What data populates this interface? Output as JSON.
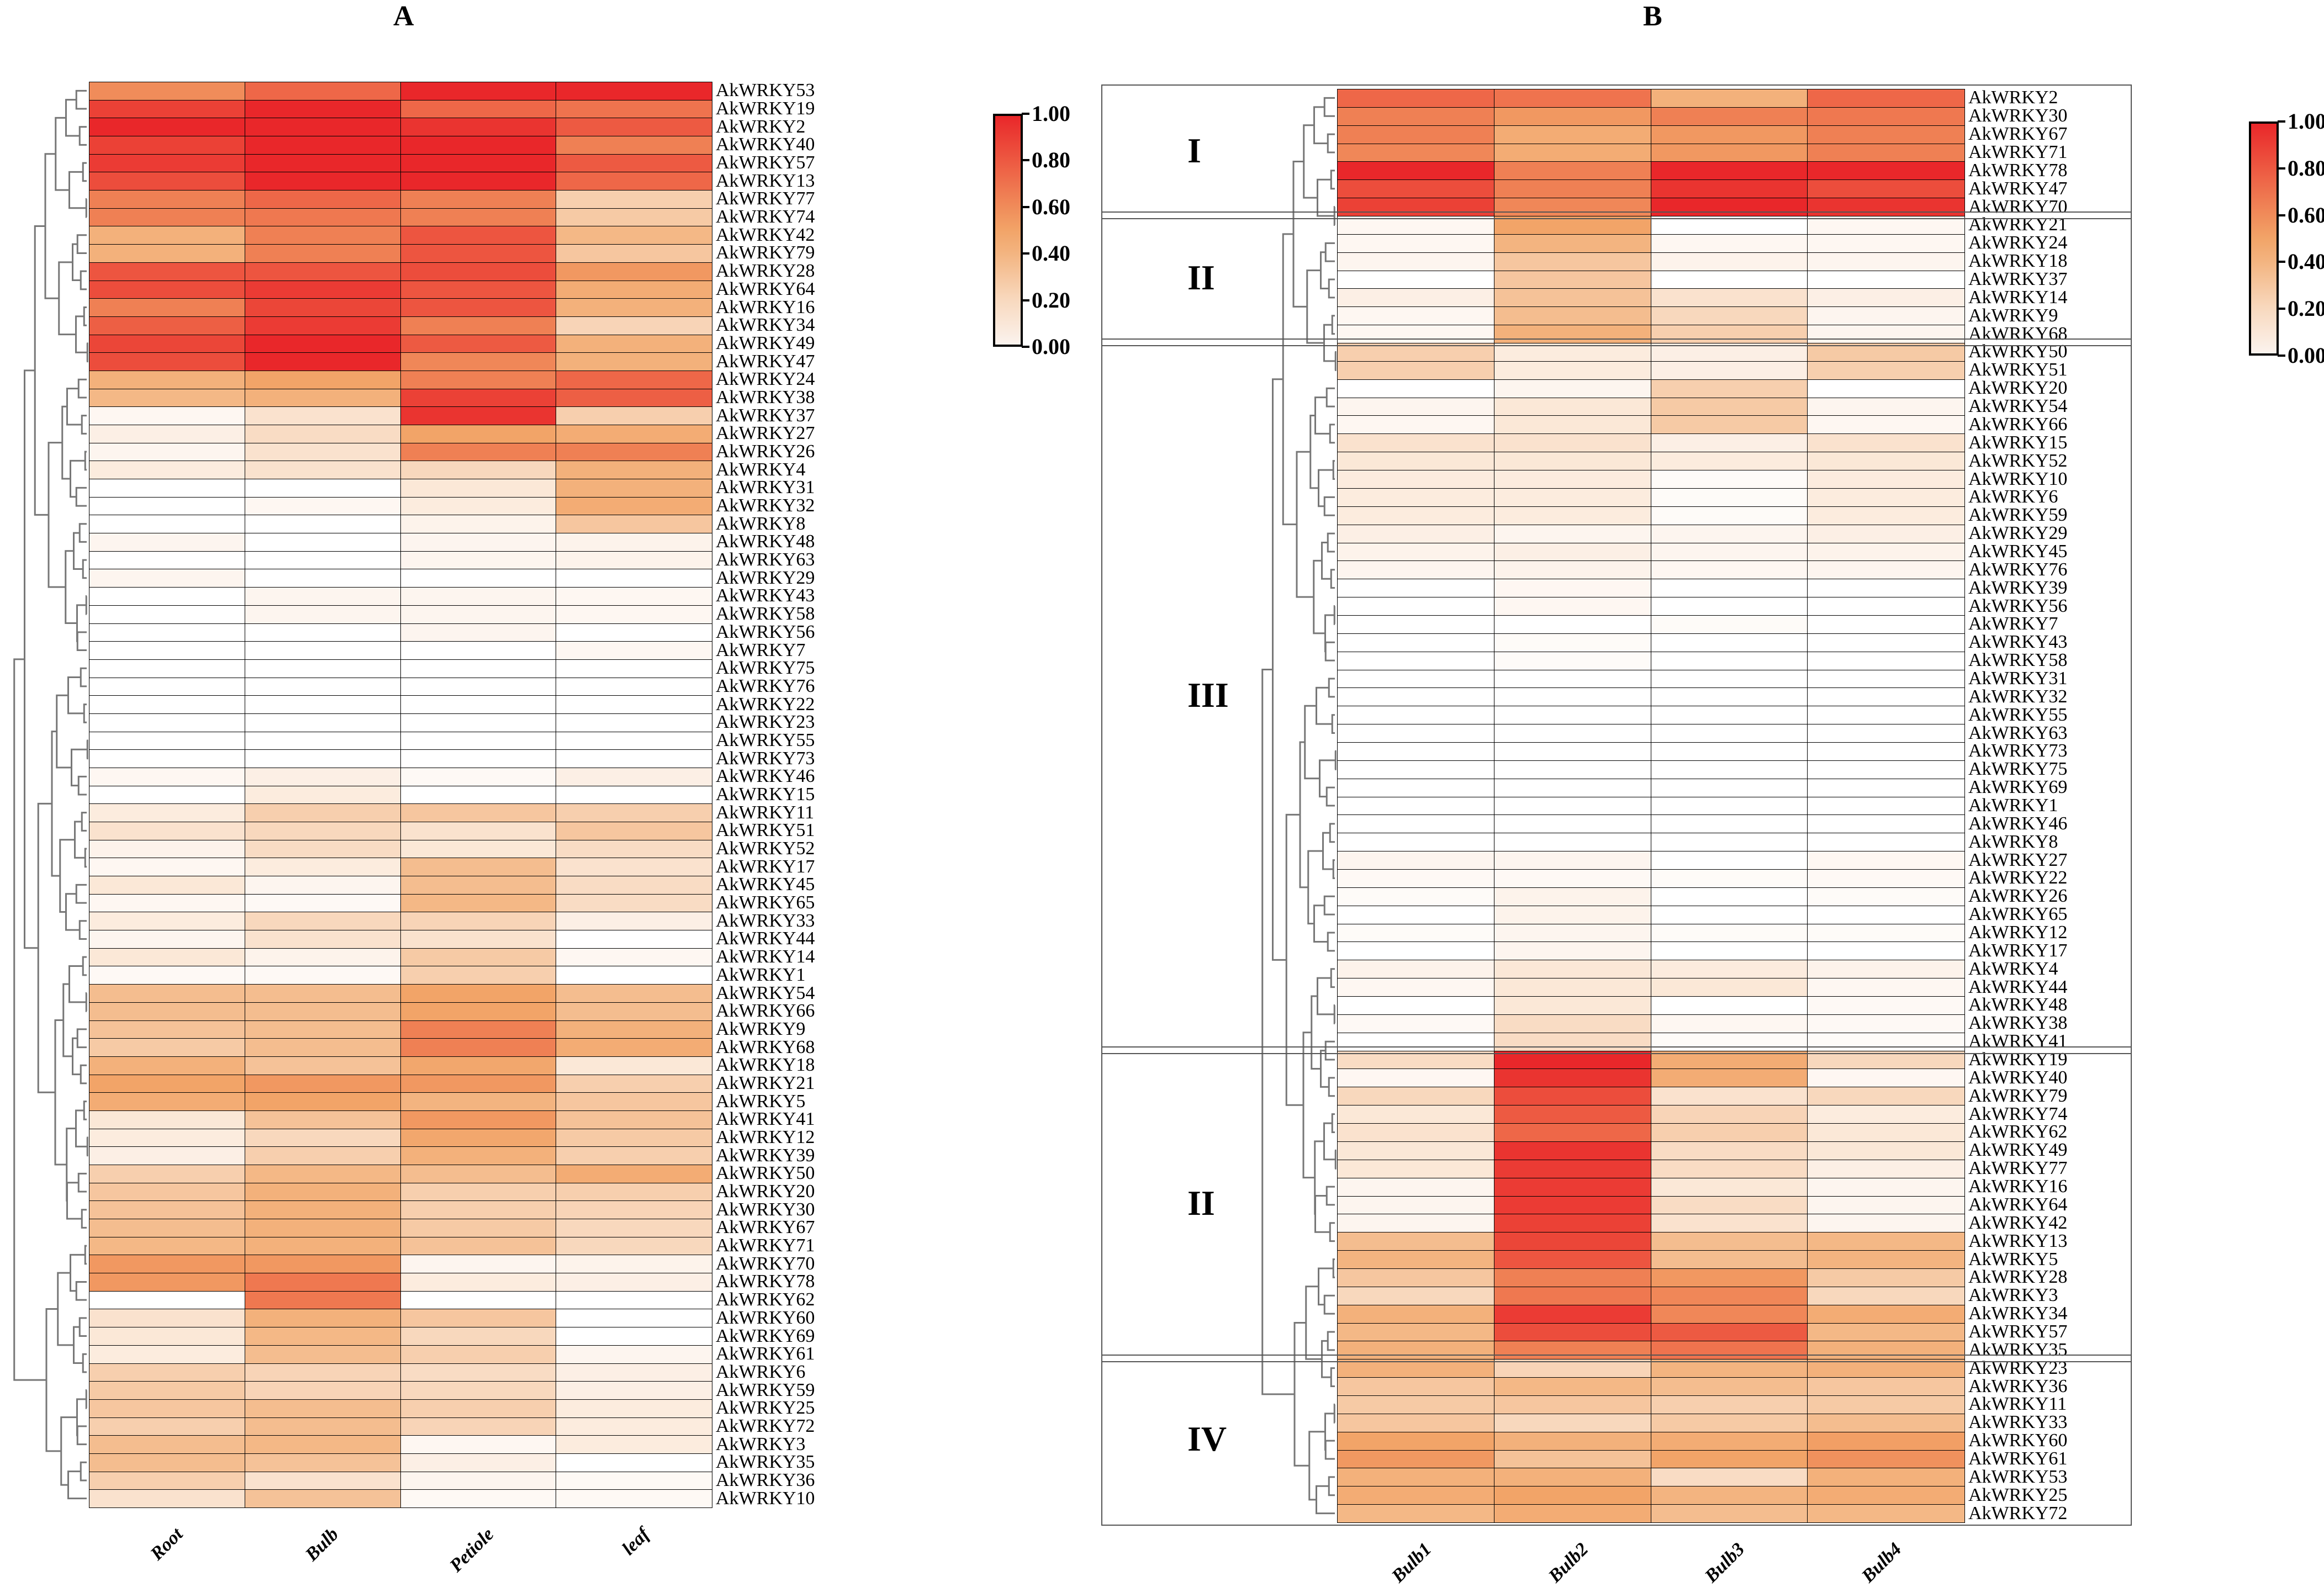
{
  "chart_data": [
    {
      "type": "heatmap",
      "title": "A",
      "columns": [
        "Root",
        "Bulb",
        "Petiole",
        "leaf"
      ],
      "rows": [
        "AkWRKY53",
        "AkWRKY19",
        "AkWRKY2",
        "AkWRKY40",
        "AkWRKY57",
        "AkWRKY13",
        "AkWRKY77",
        "AkWRKY74",
        "AkWRKY42",
        "AkWRKY79",
        "AkWRKY28",
        "AkWRKY64",
        "AkWRKY16",
        "AkWRKY34",
        "AkWRKY49",
        "AkWRKY47",
        "AkWRKY24",
        "AkWRKY38",
        "AkWRKY37",
        "AkWRKY27",
        "AkWRKY26",
        "AkWRKY4",
        "AkWRKY31",
        "AkWRKY32",
        "AkWRKY8",
        "AkWRKY48",
        "AkWRKY63",
        "AkWRKY29",
        "AkWRKY43",
        "AkWRKY58",
        "AkWRKY56",
        "AkWRKY7",
        "AkWRKY75",
        "AkWRKY76",
        "AkWRKY22",
        "AkWRKY23",
        "AkWRKY55",
        "AkWRKY73",
        "AkWRKY46",
        "AkWRKY15",
        "AkWRKY11",
        "AkWRKY51",
        "AkWRKY52",
        "AkWRKY17",
        "AkWRKY45",
        "AkWRKY65",
        "AkWRKY33",
        "AkWRKY44",
        "AkWRKY14",
        "AkWRKY1",
        "AkWRKY54",
        "AkWRKY66",
        "AkWRKY9",
        "AkWRKY68",
        "AkWRKY18",
        "AkWRKY21",
        "AkWRKY5",
        "AkWRKY41",
        "AkWRKY12",
        "AkWRKY39",
        "AkWRKY50",
        "AkWRKY20",
        "AkWRKY30",
        "AkWRKY67",
        "AkWRKY71",
        "AkWRKY70",
        "AkWRKY78",
        "AkWRKY62",
        "AkWRKY60",
        "AkWRKY69",
        "AkWRKY61",
        "AkWRKY6",
        "AkWRKY59",
        "AkWRKY25",
        "AkWRKY72",
        "AkWRKY3",
        "AkWRKY35",
        "AkWRKY36",
        "AkWRKY10"
      ],
      "values": [
        [
          0.6,
          0.75,
          1,
          1
        ],
        [
          0.9,
          1,
          0.75,
          0.7
        ],
        [
          1,
          1,
          0.95,
          0.8
        ],
        [
          0.9,
          1,
          1,
          0.65
        ],
        [
          0.92,
          1,
          1,
          0.8
        ],
        [
          0.85,
          1,
          1,
          0.75
        ],
        [
          0.65,
          0.75,
          0.65,
          0.25
        ],
        [
          0.65,
          0.68,
          0.65,
          0.28
        ],
        [
          0.42,
          0.65,
          0.82,
          0.38
        ],
        [
          0.42,
          0.65,
          0.82,
          0.3
        ],
        [
          0.82,
          0.82,
          0.85,
          0.55
        ],
        [
          0.85,
          0.92,
          0.82,
          0.45
        ],
        [
          0.65,
          0.88,
          0.82,
          0.42
        ],
        [
          0.78,
          0.92,
          0.65,
          0.22
        ],
        [
          0.88,
          1,
          0.8,
          0.42
        ],
        [
          0.85,
          1,
          0.62,
          0.42
        ],
        [
          0.42,
          0.5,
          0.65,
          0.75
        ],
        [
          0.38,
          0.42,
          0.9,
          0.78
        ],
        [
          0.04,
          0.15,
          0.95,
          0.25
        ],
        [
          0.08,
          0.18,
          0.5,
          0.45
        ],
        [
          0.05,
          0.15,
          0.65,
          0.65
        ],
        [
          0.1,
          0.15,
          0.2,
          0.42
        ],
        [
          0,
          0,
          0.12,
          0.42
        ],
        [
          0,
          0.04,
          0.1,
          0.45
        ],
        [
          0,
          0,
          0.06,
          0.3
        ],
        [
          0.05,
          0,
          0.05,
          0.06
        ],
        [
          0,
          0,
          0.05,
          0.06
        ],
        [
          0.05,
          0,
          0,
          0
        ],
        [
          0,
          0.05,
          0.05,
          0.04
        ],
        [
          0,
          0.05,
          0.05,
          0.04
        ],
        [
          0,
          0,
          0.05,
          0
        ],
        [
          0,
          0,
          0,
          0.04
        ],
        [
          0,
          0,
          0,
          0
        ],
        [
          0,
          0,
          0,
          0
        ],
        [
          0,
          0,
          0,
          0
        ],
        [
          0,
          0,
          0,
          0
        ],
        [
          0,
          0,
          0,
          0
        ],
        [
          0,
          0,
          0,
          0
        ],
        [
          0.04,
          0.08,
          0.03,
          0.08
        ],
        [
          0,
          0.1,
          0,
          0
        ],
        [
          0.1,
          0.25,
          0.3,
          0.25
        ],
        [
          0.15,
          0.2,
          0.15,
          0.3
        ],
        [
          0.06,
          0.18,
          0.12,
          0.18
        ],
        [
          0.04,
          0.1,
          0.35,
          0.15
        ],
        [
          0.12,
          0.05,
          0.35,
          0.18
        ],
        [
          0.04,
          0.03,
          0.38,
          0.18
        ],
        [
          0.1,
          0.2,
          0.22,
          0.08
        ],
        [
          0.05,
          0.15,
          0.15,
          0
        ],
        [
          0.12,
          0.06,
          0.28,
          0.04
        ],
        [
          0.03,
          0.03,
          0.25,
          0
        ],
        [
          0.35,
          0.35,
          0.5,
          0.35
        ],
        [
          0.35,
          0.35,
          0.5,
          0.35
        ],
        [
          0.32,
          0.35,
          0.65,
          0.42
        ],
        [
          0.28,
          0.35,
          0.65,
          0.45
        ],
        [
          0.42,
          0.32,
          0.48,
          0.12
        ],
        [
          0.5,
          0.55,
          0.55,
          0.25
        ],
        [
          0.45,
          0.5,
          0.4,
          0.3
        ],
        [
          0.12,
          0.32,
          0.55,
          0.32
        ],
        [
          0.1,
          0.2,
          0.48,
          0.28
        ],
        [
          0.08,
          0.25,
          0.42,
          0.25
        ],
        [
          0.25,
          0.38,
          0.35,
          0.45
        ],
        [
          0.3,
          0.42,
          0.25,
          0.25
        ],
        [
          0.32,
          0.42,
          0.25,
          0.22
        ],
        [
          0.35,
          0.42,
          0.28,
          0.2
        ],
        [
          0.38,
          0.42,
          0.32,
          0.2
        ],
        [
          0.55,
          0.55,
          0.05,
          0.06
        ],
        [
          0.55,
          0.68,
          0.1,
          0.08
        ],
        [
          0,
          0.68,
          0,
          0
        ],
        [
          0.15,
          0.42,
          0.3,
          0
        ],
        [
          0.12,
          0.38,
          0.2,
          0
        ],
        [
          0.1,
          0.35,
          0.25,
          0.05
        ],
        [
          0.25,
          0.22,
          0.18,
          0.08
        ],
        [
          0.28,
          0.22,
          0.2,
          0.08
        ],
        [
          0.3,
          0.35,
          0.25,
          0.1
        ],
        [
          0.25,
          0.35,
          0.22,
          0.1
        ],
        [
          0.35,
          0.38,
          0.04,
          0.1
        ],
        [
          0.35,
          0.32,
          0.08,
          0
        ],
        [
          0.25,
          0.15,
          0.05,
          0.03
        ],
        [
          0.15,
          0.32,
          0.03,
          0.03
        ]
      ],
      "colorbar": {
        "range": [
          0,
          1
        ],
        "ticks": [
          "0.00",
          "0.20",
          "0.40",
          "0.60",
          "0.80",
          "1.00"
        ]
      }
    },
    {
      "type": "heatmap",
      "title": "B",
      "columns": [
        "Bulb1",
        "Bulb2",
        "Bulb3",
        "Bulb4"
      ],
      "groups": [
        {
          "label": "I",
          "count": 7
        },
        {
          "label": "II",
          "count": 7
        },
        {
          "label": "III",
          "count": 39
        },
        {
          "label": "II",
          "count": 17
        },
        {
          "label": "IV",
          "count": 9
        }
      ],
      "rows": [
        "AkWRKY2",
        "AkWRKY30",
        "AkWRKY67",
        "AkWRKY71",
        "AkWRKY78",
        "AkWRKY47",
        "AkWRKY70",
        "AkWRKY21",
        "AkWRKY24",
        "AkWRKY18",
        "AkWRKY37",
        "AkWRKY14",
        "AkWRKY9",
        "AkWRKY68",
        "AkWRKY50",
        "AkWRKY51",
        "AkWRKY20",
        "AkWRKY54",
        "AkWRKY66",
        "AkWRKY15",
        "AkWRKY52",
        "AkWRKY10",
        "AkWRKY6",
        "AkWRKY59",
        "AkWRKY29",
        "AkWRKY45",
        "AkWRKY76",
        "AkWRKY39",
        "AkWRKY56",
        "AkWRKY7",
        "AkWRKY43",
        "AkWRKY58",
        "AkWRKY31",
        "AkWRKY32",
        "AkWRKY55",
        "AkWRKY63",
        "AkWRKY73",
        "AkWRKY75",
        "AkWRKY69",
        "AkWRKY1",
        "AkWRKY46",
        "AkWRKY8",
        "AkWRKY27",
        "AkWRKY22",
        "AkWRKY26",
        "AkWRKY65",
        "AkWRKY12",
        "AkWRKY17",
        "AkWRKY4",
        "AkWRKY44",
        "AkWRKY48",
        "AkWRKY38",
        "AkWRKY41",
        "AkWRKY19",
        "AkWRKY40",
        "AkWRKY79",
        "AkWRKY74",
        "AkWRKY62",
        "AkWRKY49",
        "AkWRKY77",
        "AkWRKY16",
        "AkWRKY64",
        "AkWRKY42",
        "AkWRKY13",
        "AkWRKY5",
        "AkWRKY28",
        "AkWRKY3",
        "AkWRKY34",
        "AkWRKY57",
        "AkWRKY35",
        "AkWRKY23",
        "AkWRKY36",
        "AkWRKY11",
        "AkWRKY33",
        "AkWRKY60",
        "AkWRKY61",
        "AkWRKY53",
        "AkWRKY25",
        "AkWRKY72"
      ],
      "values": [
        [
          0.75,
          0.7,
          0.42,
          0.75
        ],
        [
          0.65,
          0.55,
          0.65,
          0.68
        ],
        [
          0.65,
          0.45,
          0.55,
          0.65
        ],
        [
          0.62,
          0.45,
          0.55,
          0.65
        ],
        [
          1,
          0.65,
          1,
          1
        ],
        [
          0.85,
          0.65,
          0.95,
          0.85
        ],
        [
          0.9,
          0.62,
          1,
          0.95
        ],
        [
          0.04,
          0.5,
          0,
          0.04
        ],
        [
          0.04,
          0.4,
          0.04,
          0.04
        ],
        [
          0.05,
          0.3,
          0.06,
          0.05
        ],
        [
          0,
          0.3,
          0,
          0
        ],
        [
          0.08,
          0.32,
          0.15,
          0.08
        ],
        [
          0.04,
          0.35,
          0.2,
          0.05
        ],
        [
          0.04,
          0.42,
          0.25,
          0.05
        ],
        [
          0.25,
          0.1,
          0.08,
          0.28
        ],
        [
          0.25,
          0.1,
          0.08,
          0.25
        ],
        [
          0,
          0.05,
          0.25,
          0
        ],
        [
          0.05,
          0.12,
          0.28,
          0.05
        ],
        [
          0.04,
          0.12,
          0.28,
          0.04
        ],
        [
          0.15,
          0.15,
          0.08,
          0.15
        ],
        [
          0.12,
          0.12,
          0.1,
          0.12
        ],
        [
          0.1,
          0.1,
          0.02,
          0.1
        ],
        [
          0.1,
          0.1,
          0.02,
          0.1
        ],
        [
          0.1,
          0.1,
          0.02,
          0.1
        ],
        [
          0.08,
          0.05,
          0.05,
          0.08
        ],
        [
          0.06,
          0.08,
          0.05,
          0.06
        ],
        [
          0.05,
          0.06,
          0.04,
          0.05
        ],
        [
          0,
          0.04,
          0,
          0
        ],
        [
          0,
          0.04,
          0,
          0
        ],
        [
          0,
          0,
          0.02,
          0
        ],
        [
          0,
          0.02,
          0,
          0
        ],
        [
          0,
          0.02,
          0,
          0
        ],
        [
          0,
          0,
          0,
          0
        ],
        [
          0,
          0,
          0,
          0
        ],
        [
          0,
          0,
          0,
          0
        ],
        [
          0,
          0,
          0,
          0
        ],
        [
          0,
          0,
          0,
          0
        ],
        [
          0,
          0,
          0,
          0
        ],
        [
          0,
          0,
          0,
          0
        ],
        [
          0,
          0,
          0,
          0
        ],
        [
          0,
          0,
          0,
          0
        ],
        [
          0,
          0,
          0,
          0
        ],
        [
          0.05,
          0.05,
          0,
          0.04
        ],
        [
          0.03,
          0.03,
          0.02,
          0.03
        ],
        [
          0.02,
          0.06,
          0,
          0.02
        ],
        [
          0,
          0.06,
          0,
          0
        ],
        [
          0.02,
          0.05,
          0.02,
          0.02
        ],
        [
          0,
          0.05,
          0,
          0
        ],
        [
          0.06,
          0.12,
          0.1,
          0.06
        ],
        [
          0.04,
          0.12,
          0.12,
          0.04
        ],
        [
          0,
          0.12,
          0,
          0.03
        ],
        [
          0.03,
          0.18,
          0.04,
          0.03
        ],
        [
          0,
          0.18,
          0.02,
          0.02
        ],
        [
          0.18,
          1,
          0.45,
          0.2
        ],
        [
          0.04,
          0.95,
          0.45,
          0.04
        ],
        [
          0.2,
          0.85,
          0.15,
          0.2
        ],
        [
          0.12,
          0.8,
          0.22,
          0.1
        ],
        [
          0.15,
          0.75,
          0.25,
          0.12
        ],
        [
          0.12,
          0.95,
          0.18,
          0.12
        ],
        [
          0.12,
          0.92,
          0.18,
          0.08
        ],
        [
          0.05,
          0.92,
          0.12,
          0.05
        ],
        [
          0.05,
          0.92,
          0.18,
          0.05
        ],
        [
          0.05,
          0.9,
          0.15,
          0.05
        ],
        [
          0.35,
          0.88,
          0.35,
          0.38
        ],
        [
          0.4,
          0.82,
          0.35,
          0.4
        ],
        [
          0.3,
          0.65,
          0.55,
          0.28
        ],
        [
          0.2,
          0.68,
          0.62,
          0.2
        ],
        [
          0.42,
          0.92,
          0.62,
          0.45
        ],
        [
          0.38,
          0.85,
          0.8,
          0.38
        ],
        [
          0.42,
          0.65,
          0.7,
          0.42
        ],
        [
          0.42,
          0.22,
          0.4,
          0.42
        ],
        [
          0.3,
          0.38,
          0.35,
          0.3
        ],
        [
          0.28,
          0.3,
          0.25,
          0.28
        ],
        [
          0.3,
          0.2,
          0.28,
          0.35
        ],
        [
          0.5,
          0.42,
          0.45,
          0.52
        ],
        [
          0.55,
          0.32,
          0.5,
          0.58
        ],
        [
          0.42,
          0.42,
          0.18,
          0.42
        ],
        [
          0.45,
          0.5,
          0.4,
          0.45
        ],
        [
          0.38,
          0.45,
          0.35,
          0.38
        ]
      ],
      "colorbar": {
        "range": [
          0,
          1
        ],
        "ticks": [
          "0.00",
          "0.20",
          "0.40",
          "0.60",
          "0.80",
          "1.00"
        ]
      }
    }
  ],
  "colorscale": [
    {
      "v": 0.0,
      "color": "#ffffff"
    },
    {
      "v": 0.2,
      "color": "#f8d8bd"
    },
    {
      "v": 0.4,
      "color": "#f3b480"
    },
    {
      "v": 0.5,
      "color": "#f2a468"
    },
    {
      "v": 0.6,
      "color": "#f08c5a"
    },
    {
      "v": 0.8,
      "color": "#ed5a42"
    },
    {
      "v": 1.0,
      "color": "#e9272a"
    }
  ]
}
